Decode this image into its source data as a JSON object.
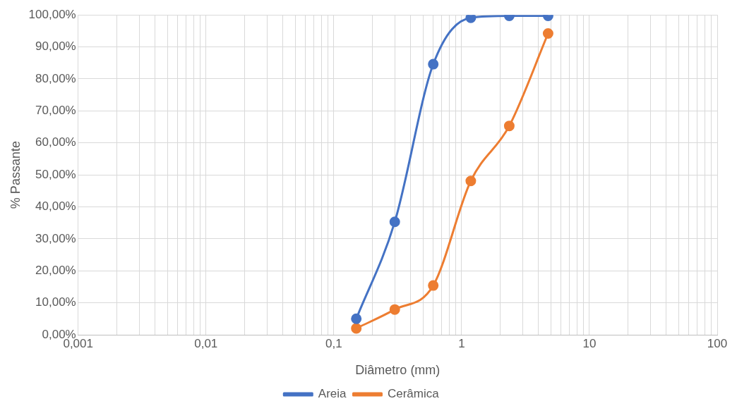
{
  "chart_data": {
    "type": "line",
    "xlabel": "Diâmetro (mm)",
    "ylabel": "% Passante",
    "log": "x",
    "grid": true,
    "legend": "bottom",
    "marker": "circle",
    "line_style": "solid",
    "xlim": [
      0.001,
      100
    ],
    "xticks": [
      {
        "value": 0.001,
        "label": "0,001"
      },
      {
        "value": 0.002,
        "label": null
      },
      {
        "value": 0.003,
        "label": null
      },
      {
        "value": 0.004,
        "label": null
      },
      {
        "value": 0.005,
        "label": null
      },
      {
        "value": 0.006,
        "label": null
      },
      {
        "value": 0.007,
        "label": null
      },
      {
        "value": 0.008,
        "label": null
      },
      {
        "value": 0.009,
        "label": null
      },
      {
        "value": 0.01,
        "label": "0,01"
      },
      {
        "value": 0.02,
        "label": null
      },
      {
        "value": 0.03,
        "label": null
      },
      {
        "value": 0.04,
        "label": null
      },
      {
        "value": 0.05,
        "label": null
      },
      {
        "value": 0.06,
        "label": null
      },
      {
        "value": 0.07,
        "label": null
      },
      {
        "value": 0.08,
        "label": null
      },
      {
        "value": 0.09,
        "label": null
      },
      {
        "value": 0.1,
        "label": "0,1"
      },
      {
        "value": 0.2,
        "label": null
      },
      {
        "value": 0.3,
        "label": null
      },
      {
        "value": 0.4,
        "label": null
      },
      {
        "value": 0.5,
        "label": null
      },
      {
        "value": 0.6,
        "label": null
      },
      {
        "value": 0.7,
        "label": null
      },
      {
        "value": 0.8,
        "label": null
      },
      {
        "value": 0.9,
        "label": null
      },
      1,
      {
        "value": 2,
        "label": null
      },
      {
        "value": 3,
        "label": null
      },
      {
        "value": 4,
        "label": null
      },
      {
        "value": 5,
        "label": null
      },
      {
        "value": 6,
        "label": null
      },
      {
        "value": 7,
        "label": null
      },
      {
        "value": 8,
        "label": null
      },
      {
        "value": 9,
        "label": null
      },
      10,
      {
        "value": 20,
        "label": null
      },
      {
        "value": 30,
        "label": null
      },
      {
        "value": 40,
        "label": null
      },
      {
        "value": 50,
        "label": null
      },
      {
        "value": 60,
        "label": null
      },
      {
        "value": 70,
        "label": null
      },
      {
        "value": 80,
        "label": null
      },
      {
        "value": 90,
        "label": null
      },
      100
    ],
    "ylim": [
      0,
      100
    ],
    "yticks": [
      {
        "value": 0,
        "label": "0,00%"
      },
      {
        "value": 10,
        "label": "10,00%"
      },
      {
        "value": 20,
        "label": "20,00%"
      },
      {
        "value": 30,
        "label": "30,00%"
      },
      {
        "value": 40,
        "label": "40,00%"
      },
      {
        "value": 50,
        "label": "50,00%"
      },
      {
        "value": 60,
        "label": "60,00%"
      },
      {
        "value": 70,
        "label": "70,00%"
      },
      {
        "value": 80,
        "label": "80,00%"
      },
      {
        "value": 90,
        "label": "90,00%"
      },
      {
        "value": 100,
        "label": "100,00%"
      }
    ],
    "x": [
      0.15,
      0.3,
      0.6,
      1.18,
      2.36,
      4.75
    ],
    "series": [
      {
        "name": "Areia",
        "color": "#4472c4",
        "values": [
          5.0,
          35.3,
          84.6,
          99.1,
          99.7,
          99.7
        ]
      },
      {
        "name": "Cerâmica",
        "color": "#ed7d31",
        "values": [
          2.0,
          7.9,
          15.4,
          48.1,
          65.3,
          94.2
        ]
      }
    ]
  }
}
